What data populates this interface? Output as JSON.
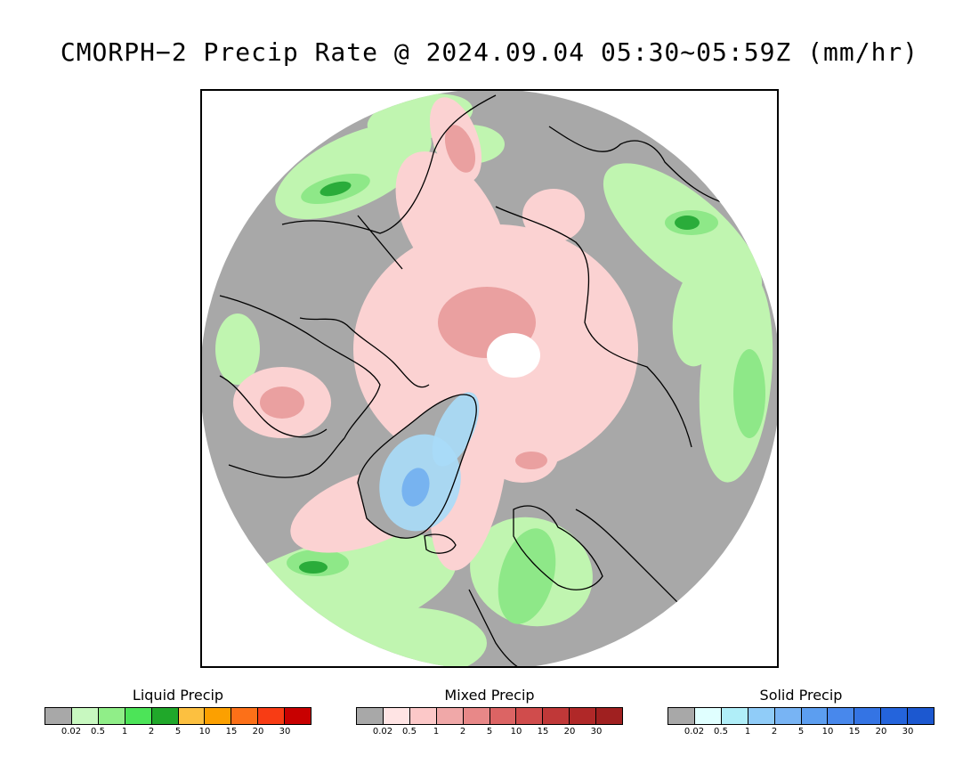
{
  "title": "CMORPH−2 Precip Rate @ 2024.09.04 05:30~05:59Z (mm/hr)",
  "map": {
    "projection": "north polar stereographic",
    "colors": {
      "no_precip": "#a8a8a8",
      "ocean_background": "#ffffff",
      "coastline": "#000000",
      "liquid_light": "#c0f5b0",
      "liquid_mid": "#8ee888",
      "liquid_heavy": "#2aac3a",
      "mixed_light": "#fbd2d2",
      "mixed_mid": "#eaa0a0",
      "mixed_heavy": "#d46464",
      "solid_light": "#a8dcf8",
      "solid_mid": "#6aaaf0",
      "pole_gap": "#ffffff"
    }
  },
  "legends": [
    {
      "title": "Liquid Precip",
      "colors": [
        "#a8a8a8",
        "#c8f8c0",
        "#90ee88",
        "#4ce458",
        "#20a82a",
        "#fcc040",
        "#fca000",
        "#fc7018",
        "#f83c14",
        "#c80000"
      ],
      "ticks": [
        "0.02",
        "0.5",
        "1",
        "2",
        "5",
        "10",
        "15",
        "20",
        "30"
      ]
    },
    {
      "title": "Mixed Precip",
      "colors": [
        "#a8a8a8",
        "#ffe4e4",
        "#fcc8c8",
        "#f0a8a8",
        "#e88888",
        "#dc6464",
        "#d04c4c",
        "#c03838",
        "#b02828",
        "#a02020"
      ],
      "ticks": [
        "0.02",
        "0.5",
        "1",
        "2",
        "5",
        "10",
        "15",
        "20",
        "30"
      ]
    },
    {
      "title": "Solid Precip",
      "colors": [
        "#a8a8a8",
        "#e0ffff",
        "#b0eef8",
        "#90ccf8",
        "#78b4f4",
        "#5c9ef0",
        "#4888ec",
        "#3474e4",
        "#2464dc",
        "#1c58d0"
      ],
      "ticks": [
        "0.02",
        "0.5",
        "1",
        "2",
        "5",
        "10",
        "15",
        "20",
        "30"
      ]
    }
  ]
}
